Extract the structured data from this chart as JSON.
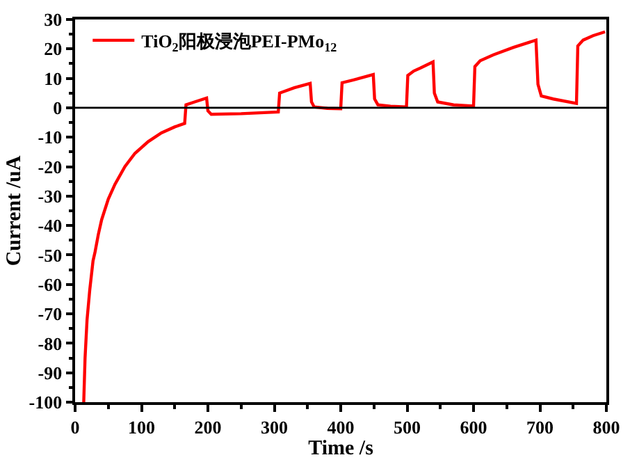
{
  "chart_data": {
    "type": "line",
    "xlabel": "Time /s",
    "ylabel": "Current /uA",
    "xlim": [
      0,
      800
    ],
    "xticks": [
      0,
      100,
      200,
      300,
      400,
      500,
      600,
      700,
      800
    ],
    "ylim": [
      -100,
      30
    ],
    "yticks": [
      -100,
      -90,
      -80,
      -70,
      -60,
      -50,
      -40,
      -30,
      -20,
      -10,
      0,
      10,
      20,
      30
    ],
    "legend": "top left",
    "marker": "none",
    "line_style": "solid",
    "ref_lines": [
      {
        "axis": "y",
        "value": 0,
        "color": "#000000"
      }
    ],
    "series": [
      {
        "name": "TiO$_{2}$阳极浸泡PEI-PMo$_{12}$",
        "color": "#ff0000",
        "x": [
          13,
          15,
          18,
          22,
          27,
          30,
          35,
          40,
          50,
          60,
          75,
          90,
          110,
          130,
          150,
          165,
          167,
          180,
          198,
          200,
          205,
          250,
          306,
          308,
          330,
          354,
          356,
          360,
          380,
          400,
          402,
          425,
          449,
          451,
          456,
          475,
          499,
          501,
          510,
          520,
          539,
          541,
          546,
          570,
          600,
          602,
          610,
          630,
          660,
          694,
          697,
          702,
          720,
          755,
          757,
          765,
          780,
          798
        ],
        "values": [
          -100,
          -85,
          -72,
          -62,
          -52,
          -49,
          -43,
          -38,
          -31,
          -26,
          -20,
          -15.5,
          -11.5,
          -8.5,
          -6.5,
          -5.3,
          1,
          2,
          3.3,
          -1,
          -2.2,
          -2,
          -1.4,
          5,
          6.8,
          8.3,
          2,
          0.3,
          -0.2,
          -0.3,
          8.5,
          9.8,
          11.3,
          3,
          1,
          0.5,
          0.3,
          11,
          12.5,
          13.5,
          15.6,
          5,
          2,
          1,
          0.6,
          14,
          16,
          18,
          20.5,
          23,
          8,
          4,
          3,
          1.5,
          21,
          23,
          24.5,
          25.8
        ]
      }
    ]
  }
}
